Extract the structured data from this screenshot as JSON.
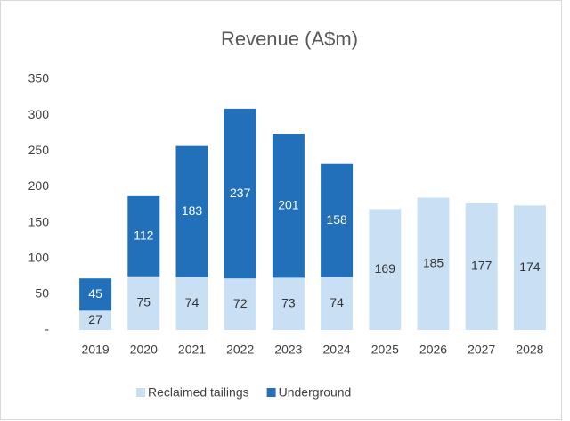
{
  "chart_data": {
    "type": "stacked_bar",
    "title": "Revenue (A$m)",
    "categories": [
      "2019",
      "2020",
      "2021",
      "2022",
      "2023",
      "2024",
      "2025",
      "2026",
      "2027",
      "2028"
    ],
    "series": [
      {
        "name": "Reclaimed tailings",
        "color": "#c9e0f4",
        "label_color": "#333333",
        "values": [
          27,
          75,
          74,
          72,
          73,
          74,
          169,
          185,
          177,
          174
        ]
      },
      {
        "name": "Underground",
        "color": "#2270b9",
        "label_color": "#ffffff",
        "values": [
          45,
          112,
          183,
          237,
          201,
          158,
          null,
          null,
          null,
          null
        ]
      }
    ],
    "ylim": [
      0,
      350
    ],
    "yticks": [
      {
        "value": 0,
        "label": "-"
      },
      50,
      100,
      150,
      200,
      250,
      300,
      350
    ],
    "grid": false,
    "legend": "bottom"
  }
}
